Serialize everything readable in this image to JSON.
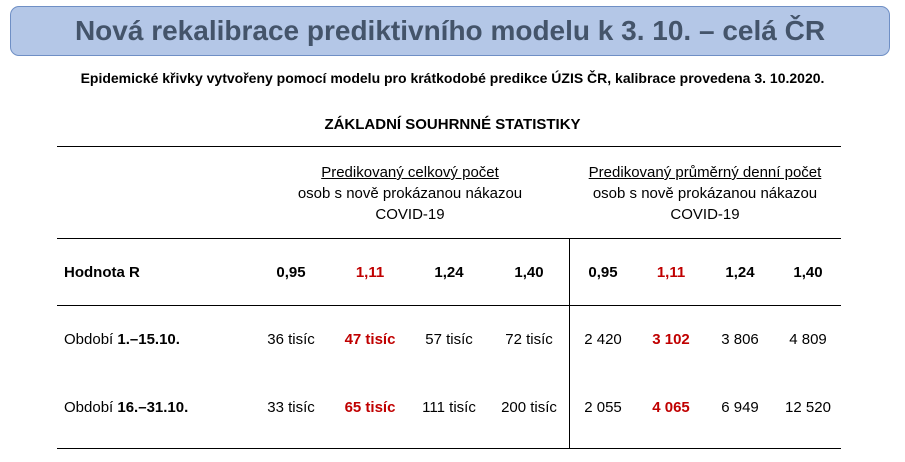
{
  "banner": {
    "title": "Nová rekalibrace prediktivního modelu k 3. 10. – celá ČR"
  },
  "subtitle": "Epidemické křivky vytvořeny pomocí modelu pro krátkodobé predikce ÚZIS ČR, kalibrace provedena 3. 10.2020.",
  "section_title": "ZÁKLADNÍ SOUHRNNÉ STATISTIKY",
  "table": {
    "group_total": {
      "line1": "Predikovaný celkový počet",
      "line2": "osob s nově prokázanou nákazou",
      "line3": "COVID-19"
    },
    "group_daily": {
      "line1": "Predikovaný průměrný denní počet",
      "line2": "osob s nově prokázanou nákazou",
      "line3": "COVID-19"
    },
    "r_row": {
      "label": "Hodnota R",
      "values": [
        "0,95",
        "1,11",
        "1,24",
        "1,40",
        "0,95",
        "1,11",
        "1,24",
        "1,40"
      ]
    },
    "rows": [
      {
        "label_prefix": "Období ",
        "label_period": "1.–15.10.",
        "values": [
          "36 tisíc",
          "47 tisíc",
          "57 tisíc",
          "72 tisíc",
          "2 420",
          "3 102",
          "3 806",
          "4 809"
        ]
      },
      {
        "label_prefix": "Období ",
        "label_period": "16.–31.10.",
        "values": [
          "33 tisíc",
          "65 tisíc",
          "111 tisíc",
          "200 tisíc",
          "2 055",
          "4 065",
          "6 949",
          "12 520"
        ]
      }
    ],
    "highlight_color": "#c00000"
  }
}
